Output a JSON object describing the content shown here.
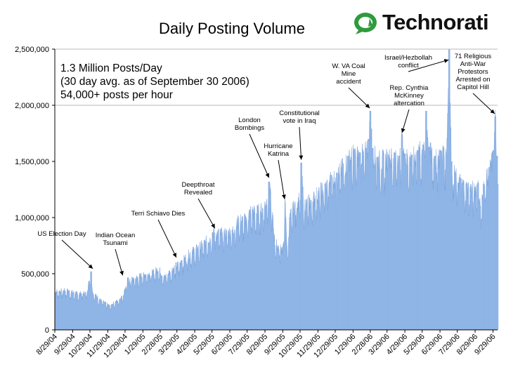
{
  "header": {
    "title": "Daily Posting Volume",
    "brand": "Technorati"
  },
  "stats": [
    "1.3 Million Posts/Day",
    "(30 day avg. as of September 30 2006)",
    "54,000+ posts per hour"
  ],
  "colors": {
    "area": "#8fb4e6",
    "area_edge": "#6f9ad8",
    "grid": "#b9b9b9",
    "logo_green": "#2f9b3c"
  },
  "chart_data": {
    "type": "area",
    "title": "Daily Posting Volume",
    "ylim": [
      0,
      2500000
    ],
    "yticks": [
      {
        "value": 0,
        "label": "0"
      },
      {
        "value": 500000,
        "label": "500,000"
      },
      {
        "value": 1000000,
        "label": "1,000,000"
      },
      {
        "value": 1500000,
        "label": "1,500,000"
      },
      {
        "value": 2000000,
        "label": "2,000,000"
      },
      {
        "value": 2500000,
        "label": "2,500,000"
      }
    ],
    "gridlines": [
      2000000,
      2500000
    ],
    "x_start": "8/29/04",
    "x_end": "10/6/06",
    "xticks": [
      "8/29/04",
      "9/29/04",
      "10/29/04",
      "11/29/04",
      "12/29/04",
      "1/29/05",
      "2/28/05",
      "3/29/05",
      "4/29/05",
      "5/29/05",
      "6/29/05",
      "7/29/05",
      "8/29/05",
      "9/29/05",
      "10/29/05",
      "11/29/05",
      "12/29/05",
      "1/29/06",
      "2/28/06",
      "3/29/06",
      "4/29/06",
      "5/29/06",
      "6/29/06",
      "7/29/06",
      "8/29/06",
      "9/29/06"
    ],
    "xtick_days": [
      0,
      31,
      61,
      92,
      122,
      153,
      183,
      212,
      243,
      273,
      304,
      334,
      365,
      396,
      426,
      457,
      487,
      518,
      548,
      577,
      608,
      638,
      669,
      699,
      730,
      761
    ],
    "series": [
      {
        "name": "Daily posts",
        "points": [
          [
            0,
            350000
          ],
          [
            20,
            360000
          ],
          [
            40,
            330000
          ],
          [
            55,
            340000
          ],
          [
            63,
            520000
          ],
          [
            66,
            340000
          ],
          [
            80,
            270000
          ],
          [
            95,
            220000
          ],
          [
            110,
            270000
          ],
          [
            120,
            330000
          ],
          [
            125,
            450000
          ],
          [
            140,
            470000
          ],
          [
            155,
            510000
          ],
          [
            170,
            520000
          ],
          [
            180,
            560000
          ],
          [
            190,
            480000
          ],
          [
            205,
            560000
          ],
          [
            220,
            620000
          ],
          [
            235,
            700000
          ],
          [
            250,
            750000
          ],
          [
            260,
            790000
          ],
          [
            270,
            850000
          ],
          [
            275,
            900000
          ],
          [
            285,
            880000
          ],
          [
            300,
            880000
          ],
          [
            310,
            920000
          ],
          [
            320,
            1000000
          ],
          [
            330,
            1000000
          ],
          [
            340,
            1080000
          ],
          [
            350,
            1070000
          ],
          [
            360,
            1100000
          ],
          [
            368,
            1180000
          ],
          [
            372,
            1320000
          ],
          [
            377,
            1120000
          ],
          [
            382,
            800000
          ],
          [
            390,
            750000
          ],
          [
            396,
            740000
          ],
          [
            400,
            1150000
          ],
          [
            404,
            720000
          ],
          [
            408,
            1020000
          ],
          [
            415,
            1120000
          ],
          [
            425,
            1200000
          ],
          [
            428,
            1490000
          ],
          [
            432,
            1150000
          ],
          [
            440,
            1160000
          ],
          [
            450,
            1200000
          ],
          [
            460,
            1260000
          ],
          [
            470,
            1300000
          ],
          [
            480,
            1380000
          ],
          [
            490,
            1400000
          ],
          [
            500,
            1480000
          ],
          [
            510,
            1550000
          ],
          [
            520,
            1600000
          ],
          [
            530,
            1580000
          ],
          [
            540,
            1620000
          ],
          [
            545,
            1700000
          ],
          [
            548,
            1950000
          ],
          [
            552,
            1620000
          ],
          [
            560,
            1540000
          ],
          [
            570,
            1550000
          ],
          [
            580,
            1560000
          ],
          [
            590,
            1580000
          ],
          [
            598,
            1550000
          ],
          [
            603,
            1720000
          ],
          [
            608,
            1570000
          ],
          [
            620,
            1560000
          ],
          [
            630,
            1600000
          ],
          [
            640,
            1650000
          ],
          [
            645,
            1950000
          ],
          [
            650,
            1630000
          ],
          [
            660,
            1550000
          ],
          [
            670,
            1600000
          ],
          [
            675,
            1620000
          ],
          [
            680,
            1580000
          ],
          [
            685,
            2500000
          ],
          [
            689,
            1500000
          ],
          [
            695,
            1400000
          ],
          [
            705,
            1350000
          ],
          [
            715,
            1300000
          ],
          [
            725,
            1280000
          ],
          [
            735,
            1310000
          ],
          [
            740,
            1100000
          ],
          [
            745,
            1300000
          ],
          [
            755,
            1450000
          ],
          [
            762,
            1600000
          ],
          [
            765,
            1900000
          ],
          [
            768,
            1550000
          ],
          [
            769,
            1300000
          ]
        ]
      }
    ],
    "annotations": [
      {
        "text": "US Election Day",
        "day": 66,
        "value": 520000
      },
      {
        "text": "Indian Ocean\nTsunami",
        "day": 118,
        "value": 460000
      },
      {
        "text": "Terri Schiavo Dies",
        "day": 211,
        "value": 620000
      },
      {
        "text": "Deepthroat\nRevealed",
        "day": 278,
        "value": 880000
      },
      {
        "text": "London\nBombings",
        "day": 372,
        "value": 1330000
      },
      {
        "text": "Hurricane\nKatrina",
        "day": 399,
        "value": 1140000
      },
      {
        "text": "Constitutional\nvote in Iraq",
        "day": 428,
        "value": 1490000
      },
      {
        "text": "W. VA Coal\nMine\naccident",
        "day": 547,
        "value": 1950000
      },
      {
        "text": "Rep. Cynthia\nMcKinney\naltercation",
        "day": 603,
        "value": 1730000
      },
      {
        "text": "Israel/Hezbollah\nconflict",
        "day": 684,
        "value": 2380000
      },
      {
        "text": "71 Religious\nAnti-War\nProtestors\nArrested on\nCapitol Hill",
        "day": 764,
        "value": 1900000
      }
    ]
  }
}
